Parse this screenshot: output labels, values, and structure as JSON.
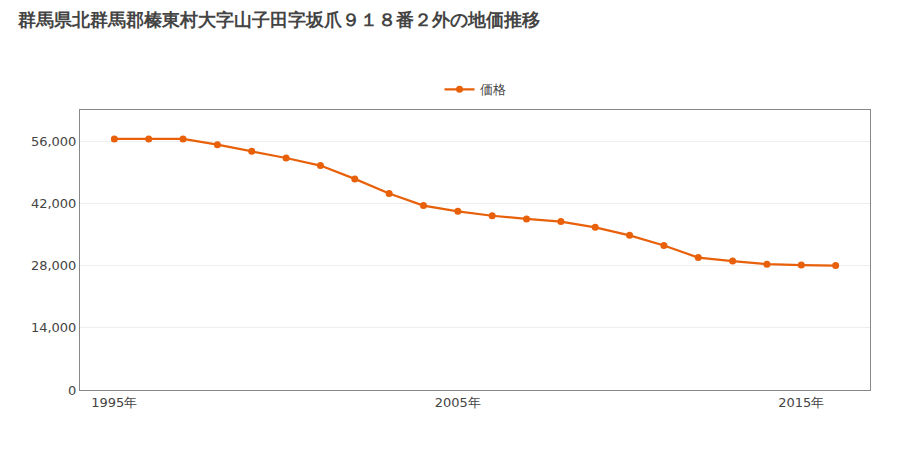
{
  "chart_data": {
    "type": "line",
    "title": "群馬県北群馬郡榛東村大字山子田字坂爪９１８番２外の地価推移",
    "x": [
      1995,
      1996,
      1997,
      1998,
      1999,
      2000,
      2001,
      2002,
      2003,
      2004,
      2005,
      2006,
      2007,
      2008,
      2009,
      2010,
      2011,
      2012,
      2013,
      2014,
      2015,
      2016
    ],
    "series": [
      {
        "name": "価格",
        "color": "#E8600A",
        "values": [
          56500,
          56500,
          56500,
          55200,
          53700,
          52200,
          50500,
          47500,
          44200,
          41500,
          40200,
          39200,
          38500,
          37900,
          36600,
          34800,
          32500,
          29800,
          29000,
          28300,
          28100,
          28000
        ]
      }
    ],
    "xlim": [
      1994,
      2017
    ],
    "xticks": [
      {
        "value": 1995,
        "label": "1995年"
      },
      {
        "value": 2005,
        "label": "2005年"
      },
      {
        "value": 2015,
        "label": "2015年"
      }
    ],
    "ylim": [
      0,
      63000
    ],
    "yticks": [
      0,
      {
        "value": 14000,
        "label": "14,000"
      },
      {
        "value": 28000,
        "label": "28,000"
      },
      {
        "value": 42000,
        "label": "42,000"
      },
      {
        "value": 56000,
        "label": "56,000"
      }
    ],
    "grid": true,
    "legend": "top",
    "marker": "circle"
  }
}
